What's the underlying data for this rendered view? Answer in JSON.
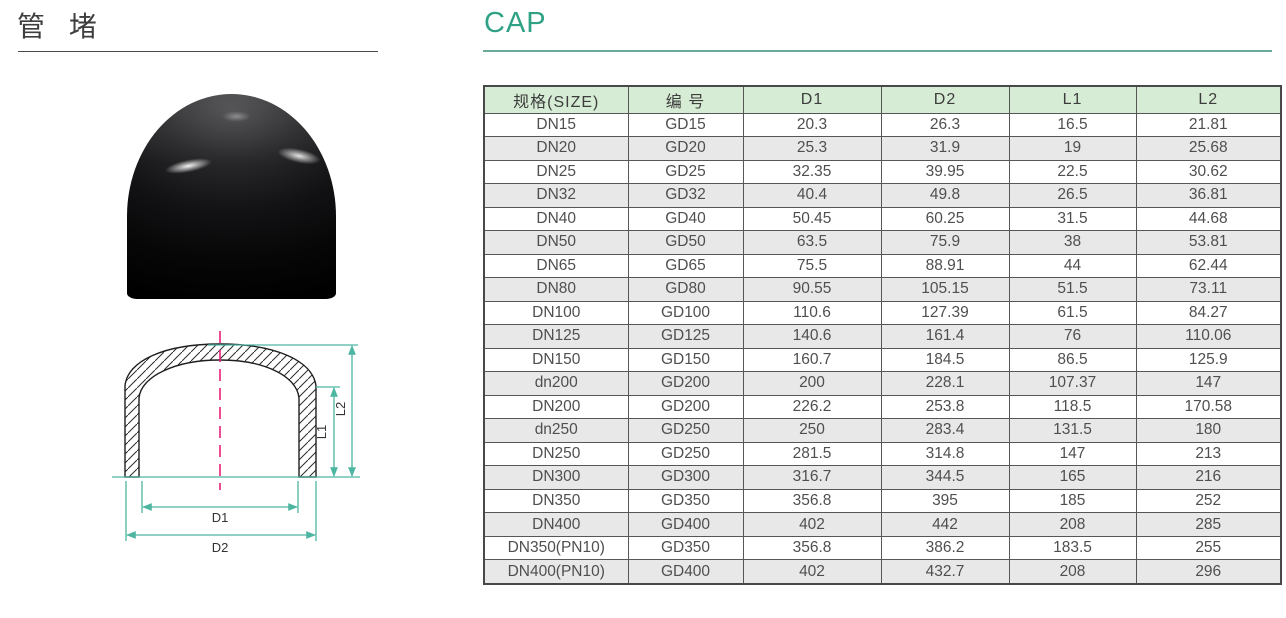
{
  "page": {
    "title_cn": "管 堵",
    "title_en": "CAP"
  },
  "colors": {
    "accent": "#2fa286",
    "header_bg": "#d6ecd4",
    "row_alt": "#e8e8e8",
    "table_border": "#565656",
    "dim_line": "#4cb6a2",
    "centerline": "#ea1f79"
  },
  "diagram": {
    "labels": {
      "d1": "D1",
      "d2": "D2",
      "l1": "L1",
      "l2": "L2"
    }
  },
  "table": {
    "headers": [
      "规格(SIZE)",
      "编 号",
      "D1",
      "D2",
      "L1",
      "L2"
    ],
    "rows": [
      [
        "DN15",
        "GD15",
        "20.3",
        "26.3",
        "16.5",
        "21.81"
      ],
      [
        "DN20",
        "GD20",
        "25.3",
        "31.9",
        "19",
        "25.68"
      ],
      [
        "DN25",
        "GD25",
        "32.35",
        "39.95",
        "22.5",
        "30.62"
      ],
      [
        "DN32",
        "GD32",
        "40.4",
        "49.8",
        "26.5",
        "36.81"
      ],
      [
        "DN40",
        "GD40",
        "50.45",
        "60.25",
        "31.5",
        "44.68"
      ],
      [
        "DN50",
        "GD50",
        "63.5",
        "75.9",
        "38",
        "53.81"
      ],
      [
        "DN65",
        "GD65",
        "75.5",
        "88.91",
        "44",
        "62.44"
      ],
      [
        "DN80",
        "GD80",
        "90.55",
        "105.15",
        "51.5",
        "73.11"
      ],
      [
        "DN100",
        "GD100",
        "110.6",
        "127.39",
        "61.5",
        "84.27"
      ],
      [
        "DN125",
        "GD125",
        "140.6",
        "161.4",
        "76",
        "110.06"
      ],
      [
        "DN150",
        "GD150",
        "160.7",
        "184.5",
        "86.5",
        "125.9"
      ],
      [
        "dn200",
        "GD200",
        "200",
        "228.1",
        "107.37",
        "147"
      ],
      [
        "DN200",
        "GD200",
        "226.2",
        "253.8",
        "118.5",
        "170.58"
      ],
      [
        "dn250",
        "GD250",
        "250",
        "283.4",
        "131.5",
        "180"
      ],
      [
        "DN250",
        "GD250",
        "281.5",
        "314.8",
        "147",
        "213"
      ],
      [
        "DN300",
        "GD300",
        "316.7",
        "344.5",
        "165",
        "216"
      ],
      [
        "DN350",
        "GD350",
        "356.8",
        "395",
        "185",
        "252"
      ],
      [
        "DN400",
        "GD400",
        "402",
        "442",
        "208",
        "285"
      ],
      [
        "DN350(PN10)",
        "GD350",
        "356.8",
        "386.2",
        "183.5",
        "255"
      ],
      [
        "DN400(PN10)",
        "GD400",
        "402",
        "432.7",
        "208",
        "296"
      ]
    ]
  }
}
